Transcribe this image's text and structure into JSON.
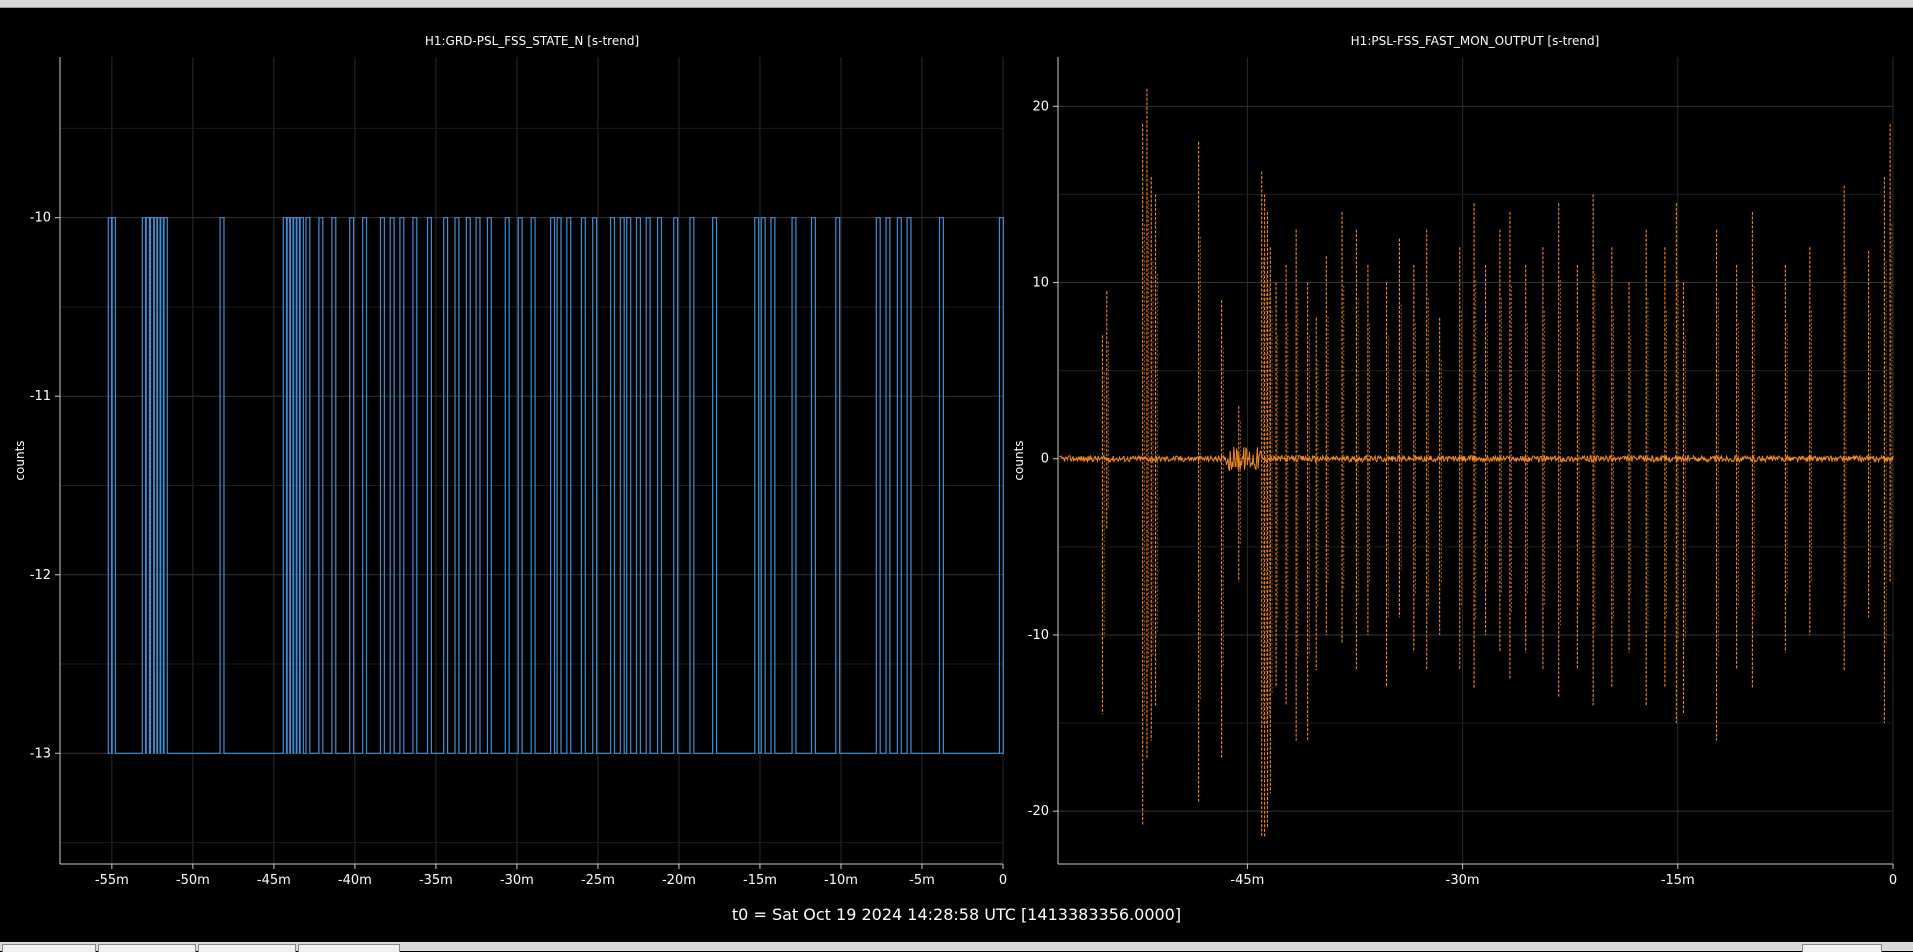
{
  "footer": {
    "t0": "t0 = Sat Oct 19 2024 14:28:58 UTC [1413383356.0000]"
  },
  "colors": {
    "left_series": "#3f8fd2",
    "right_series": "#f38a1f",
    "background": "#000000",
    "grid": "#2a2a2a",
    "text": "#ffffff"
  },
  "chart_data": [
    {
      "type": "line",
      "title": "H1:GRD-PSL_FSS_STATE_N [s-trend]",
      "ylabel": "counts",
      "xlabel": "",
      "xlim": [
        -58.2,
        0
      ],
      "ylim": [
        -13.62,
        -9.1
      ],
      "xticks": [
        -55,
        -50,
        -45,
        -40,
        -35,
        -30,
        -25,
        -20,
        -15,
        -10,
        -5,
        0
      ],
      "xtick_labels": [
        "-55m",
        "-50m",
        "-45m",
        "-40m",
        "-35m",
        "-30m",
        "-25m",
        "-20m",
        "-15m",
        "-10m",
        "-5m",
        "0"
      ],
      "yticks": [
        -10,
        -11,
        -12,
        -13
      ],
      "ytick_labels": [
        "-10",
        "-11",
        "-12",
        "-13"
      ],
      "grid": true,
      "series": [
        {
          "color": "#3f8fd2",
          "baseline": -13,
          "high": -10,
          "pulses": [
            -55.1,
            -54.9,
            -53.0,
            -52.8,
            -52.5,
            -52.3,
            -52.1,
            -51.9,
            -51.7,
            -48.2,
            -44.3,
            -44.1,
            -43.9,
            -43.7,
            -43.5,
            -43.3,
            -42.9,
            -42.1,
            -41.3,
            -40.2,
            -39.4,
            -38.3,
            -37.7,
            -37.1,
            -36.3,
            -35.4,
            -34.4,
            -33.7,
            -33.0,
            -32.4,
            -31.7,
            -30.6,
            -29.8,
            -29.0,
            -27.8,
            -27.4,
            -26.8,
            -25.9,
            -25.2,
            -24.1,
            -23.5,
            -23.1,
            -22.5,
            -21.9,
            -21.2,
            -20.2,
            -19.2,
            -17.8,
            -15.2,
            -14.8,
            -14.2,
            -12.9,
            -11.7,
            -10.2,
            -7.7,
            -7.1,
            -6.4,
            -5.8,
            -3.8,
            -0.1
          ],
          "spikes": [
            {
              "x": -52.6,
              "y": -13
            },
            {
              "x": -44.0,
              "y": -12
            },
            {
              "x": -43.6,
              "y": -12
            }
          ]
        }
      ]
    },
    {
      "type": "line",
      "title": "H1:PSL-FSS_FAST_MON_OUTPUT [s-trend]",
      "ylabel": "counts",
      "xlabel": "",
      "xlim": [
        -58.2,
        0
      ],
      "ylim": [
        -23.0,
        22.8
      ],
      "xticks": [
        -45,
        -30,
        -15,
        0
      ],
      "xtick_labels": [
        "-45m",
        "-30m",
        "-15m",
        "0"
      ],
      "yticks": [
        20,
        10,
        0,
        -10,
        -20
      ],
      "ytick_labels": [
        "20",
        "10",
        "0",
        "-10",
        "-20"
      ],
      "grid": true,
      "series": [
        {
          "color": "#f38a1f",
          "baseline": 0,
          "spikes": [
            {
              "x": -55.1,
              "hi": 7,
              "lo": -14.5
            },
            {
              "x": -54.8,
              "hi": 9.5,
              "lo": -4
            },
            {
              "x": -52.3,
              "hi": 19,
              "lo": -20.8
            },
            {
              "x": -52.0,
              "hi": 21,
              "lo": -17
            },
            {
              "x": -51.7,
              "hi": 16,
              "lo": -16
            },
            {
              "x": -51.4,
              "hi": 15,
              "lo": -14
            },
            {
              "x": -48.4,
              "hi": 18,
              "lo": -19.5
            },
            {
              "x": -46.8,
              "hi": 9,
              "lo": -17
            },
            {
              "x": -45.6,
              "hi": 3,
              "lo": -7
            },
            {
              "x": -44.0,
              "hi": 16.3,
              "lo": -21.5
            },
            {
              "x": -43.8,
              "hi": 15,
              "lo": -21.5
            },
            {
              "x": -43.6,
              "hi": 14,
              "lo": -21
            },
            {
              "x": -43.4,
              "hi": 12,
              "lo": -19
            },
            {
              "x": -43.0,
              "hi": 10,
              "lo": -13
            },
            {
              "x": -42.3,
              "hi": 11,
              "lo": -14
            },
            {
              "x": -41.6,
              "hi": 13,
              "lo": -16
            },
            {
              "x": -40.8,
              "hi": 10,
              "lo": -16
            },
            {
              "x": -40.2,
              "hi": 8,
              "lo": -12
            },
            {
              "x": -39.5,
              "hi": 11.5,
              "lo": -10
            },
            {
              "x": -38.4,
              "hi": 14,
              "lo": -10.5
            },
            {
              "x": -37.4,
              "hi": 13,
              "lo": -12
            },
            {
              "x": -36.6,
              "hi": 11,
              "lo": -10
            },
            {
              "x": -35.3,
              "hi": 10,
              "lo": -13
            },
            {
              "x": -34.4,
              "hi": 12.5,
              "lo": -9
            },
            {
              "x": -33.4,
              "hi": 11,
              "lo": -11
            },
            {
              "x": -32.5,
              "hi": 13,
              "lo": -12
            },
            {
              "x": -31.6,
              "hi": 8,
              "lo": -10
            },
            {
              "x": -30.2,
              "hi": 12,
              "lo": -12
            },
            {
              "x": -29.2,
              "hi": 14.5,
              "lo": -13
            },
            {
              "x": -28.4,
              "hi": 11,
              "lo": -10
            },
            {
              "x": -27.4,
              "hi": 13,
              "lo": -11
            },
            {
              "x": -26.7,
              "hi": 14,
              "lo": -12.5
            },
            {
              "x": -25.6,
              "hi": 11,
              "lo": -11
            },
            {
              "x": -24.4,
              "hi": 12,
              "lo": -12
            },
            {
              "x": -23.3,
              "hi": 14.5,
              "lo": -13.5
            },
            {
              "x": -22.0,
              "hi": 11,
              "lo": -12
            },
            {
              "x": -20.9,
              "hi": 15,
              "lo": -14
            },
            {
              "x": -19.6,
              "hi": 12,
              "lo": -13
            },
            {
              "x": -18.4,
              "hi": 10,
              "lo": -11
            },
            {
              "x": -17.2,
              "hi": 13,
              "lo": -14
            },
            {
              "x": -15.9,
              "hi": 12,
              "lo": -13
            },
            {
              "x": -15.1,
              "hi": 14.5,
              "lo": -15
            },
            {
              "x": -14.6,
              "hi": 10,
              "lo": -14.5
            },
            {
              "x": -12.3,
              "hi": 13,
              "lo": -16
            },
            {
              "x": -10.9,
              "hi": 11,
              "lo": -12
            },
            {
              "x": -9.8,
              "hi": 14,
              "lo": -13
            },
            {
              "x": -7.5,
              "hi": 11,
              "lo": -11
            },
            {
              "x": -5.8,
              "hi": 12,
              "lo": -10
            },
            {
              "x": -3.4,
              "hi": 15.5,
              "lo": -12
            },
            {
              "x": -1.7,
              "hi": 11.8,
              "lo": -9
            },
            {
              "x": -0.6,
              "hi": 16,
              "lo": -15
            },
            {
              "x": -0.2,
              "hi": 19,
              "lo": -7
            }
          ]
        }
      ]
    }
  ]
}
